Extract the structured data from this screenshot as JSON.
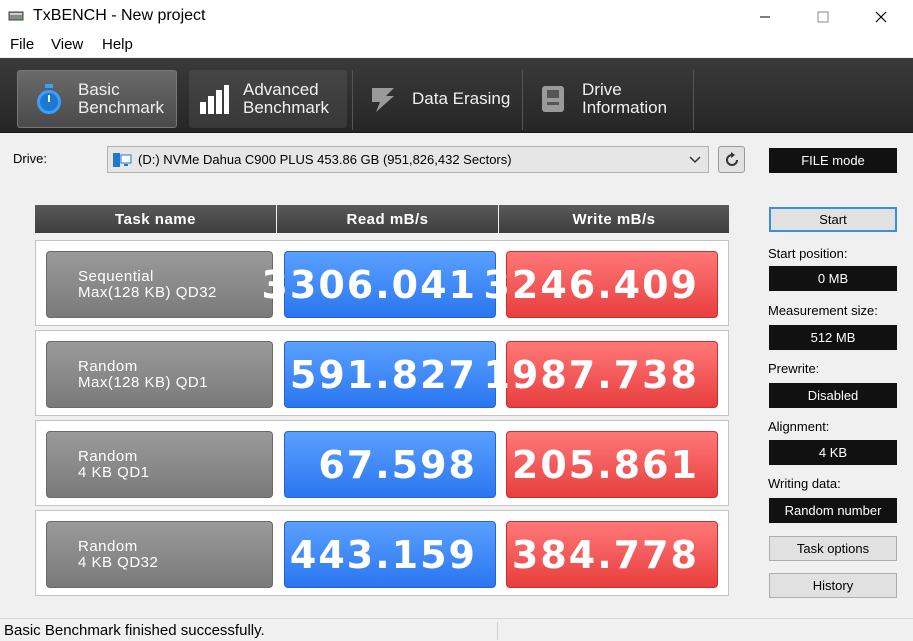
{
  "window": {
    "title": "TxBENCH - New project"
  },
  "menu": {
    "file": "File",
    "view": "View",
    "help": "Help"
  },
  "tabs": [
    {
      "line1": "Basic",
      "line2": "Benchmark",
      "icon": "stopwatch-icon",
      "active": true
    },
    {
      "line1": "Advanced",
      "line2": "Benchmark",
      "icon": "bar-chart-icon",
      "active": false
    },
    {
      "line1": "Data Erasing",
      "line2": "",
      "icon": "eraser-icon",
      "active": false
    },
    {
      "line1": "Drive",
      "line2": "Information",
      "icon": "drive-info-icon",
      "active": false
    }
  ],
  "drive": {
    "label": "Drive:",
    "selected": "(D:) NVMe Dahua C900 PLUS  453.86 GB (951,826,432 Sectors)",
    "mode": "FILE mode"
  },
  "table": {
    "headers": {
      "task": "Task name",
      "read": "Read mB/s",
      "write": "Write mB/s"
    },
    "rows": [
      {
        "task_line1": "Sequential",
        "task_line2": "Max(128 KB) QD32",
        "read": "3306.041",
        "write": "3246.409"
      },
      {
        "task_line1": "Random",
        "task_line2": "Max(128 KB) QD1",
        "read": "591.827",
        "write": "1987.738"
      },
      {
        "task_line1": "Random",
        "task_line2": "4 KB QD1",
        "read": "67.598",
        "write": "205.861"
      },
      {
        "task_line1": "Random",
        "task_line2": "4 KB QD32",
        "read": "443.159",
        "write": "384.778"
      }
    ]
  },
  "panel": {
    "start": "Start",
    "start_position_label": "Start position:",
    "start_position_value": "0 MB",
    "measurement_size_label": "Measurement size:",
    "measurement_size_value": "512 MB",
    "prewrite_label": "Prewrite:",
    "prewrite_value": "Disabled",
    "alignment_label": "Alignment:",
    "alignment_value": "4 KB",
    "writing_data_label": "Writing data:",
    "writing_data_value": "Random number",
    "task_options": "Task options",
    "history": "History"
  },
  "status": {
    "text": "Basic Benchmark finished successfully."
  },
  "colors": {
    "read": "#2a76f0",
    "write": "#e83e3e",
    "accent": "#3c8fd8"
  }
}
